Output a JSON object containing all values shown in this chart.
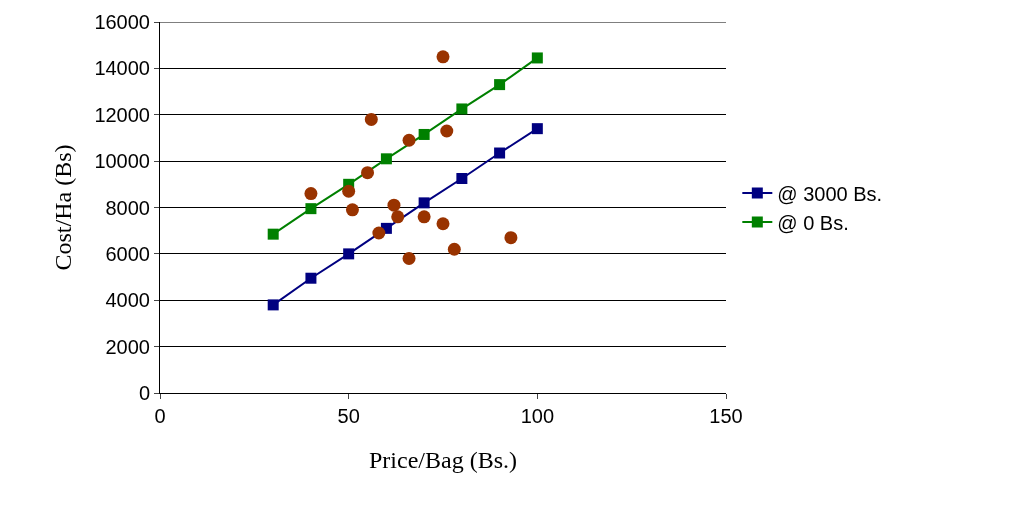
{
  "chart_data": {
    "type": "line",
    "xlabel": "Price/Bag (Bs.)",
    "ylabel": "Cost/Ha (Bs)",
    "xlim": [
      0,
      150
    ],
    "xticks": [
      0,
      50,
      100,
      150
    ],
    "ylim": [
      0,
      16000
    ],
    "yticks": [
      0,
      2000,
      4000,
      6000,
      8000,
      10000,
      12000,
      14000,
      16000
    ],
    "grid": "y",
    "legend": "right",
    "marker": "square",
    "line_style": "solid",
    "x": [
      30,
      40,
      50,
      60,
      70,
      80,
      90,
      100
    ],
    "series": [
      {
        "name": "@ 3000 Bs.",
        "color": "#000080",
        "values": [
          3800,
          4950,
          6000,
          7100,
          8200,
          9250,
          10350,
          11400
        ]
      },
      {
        "name": "@ 0 Bs.",
        "color": "#008000",
        "values": [
          6850,
          7950,
          9000,
          10100,
          11150,
          12250,
          13300,
          14450
        ]
      },
      {
        "type": "scatter",
        "marker": "circle",
        "color": "#993300",
        "x": [
          40,
          50,
          51,
          55,
          56,
          58,
          62,
          63,
          66,
          66,
          70,
          75,
          75,
          76,
          78,
          93
        ],
        "values": [
          8600,
          8700,
          7900,
          9500,
          11800,
          6900,
          8100,
          7600,
          10900,
          5800,
          7600,
          14500,
          7300,
          11300,
          6200,
          6700
        ]
      }
    ]
  }
}
